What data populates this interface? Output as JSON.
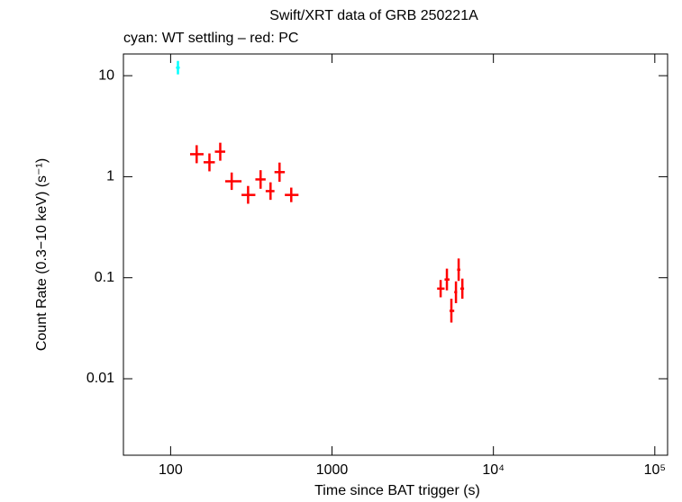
{
  "chart_data": {
    "type": "scatter",
    "title": "Swift/XRT data of GRB 250221A",
    "subtitle": "cyan: WT settling – red: PC",
    "x_label": "Time since BAT trigger (s)",
    "y_label": "Count Rate (0.3−10 keV) (s⁻¹)",
    "x_log": true,
    "y_log": true,
    "xlim": [
      51,
      120000
    ],
    "ylim": [
      0.00175,
      16.4
    ],
    "xticks": [
      100,
      1000,
      {
        "value": 10000,
        "label": "10⁴"
      },
      {
        "value": 100000,
        "label": "10⁵"
      }
    ],
    "yticks": [
      10,
      1,
      0.1,
      0.01
    ],
    "series": [
      {
        "name": "WT settling",
        "color": "#00ffff",
        "x": [
          111
        ],
        "xlo": [
          108
        ],
        "xhi": [
          114
        ],
        "values": [
          12.0
        ],
        "ylo": [
          10.3
        ],
        "yhi": [
          14.0
        ]
      },
      {
        "name": "PC",
        "color": "#ff0000",
        "x": [
          145,
          174,
          203,
          239,
          302,
          361,
          416,
          473,
          559,
          4710,
          5150,
          5490,
          5860,
          6090,
          6420
        ],
        "xlo": [
          132,
          160,
          188,
          218,
          275,
          335,
          388,
          440,
          510,
          4480,
          4980,
          5350,
          5720,
          5960,
          6240
        ],
        "xhi": [
          160,
          188,
          218,
          275,
          335,
          388,
          440,
          510,
          620,
          4980,
          5350,
          5720,
          5960,
          6240,
          6580
        ],
        "values": [
          1.67,
          1.39,
          1.77,
          0.9,
          0.66,
          0.94,
          0.72,
          1.11,
          0.66,
          0.078,
          0.096,
          0.047,
          0.072,
          0.12,
          0.078
        ],
        "ylo": [
          1.36,
          1.13,
          1.44,
          0.74,
          0.54,
          0.76,
          0.59,
          0.89,
          0.56,
          0.064,
          0.075,
          0.036,
          0.056,
          0.093,
          0.062
        ],
        "yhi": [
          2.05,
          1.7,
          2.17,
          1.1,
          0.81,
          1.16,
          0.88,
          1.38,
          0.78,
          0.095,
          0.123,
          0.062,
          0.092,
          0.155,
          0.098
        ]
      }
    ]
  }
}
